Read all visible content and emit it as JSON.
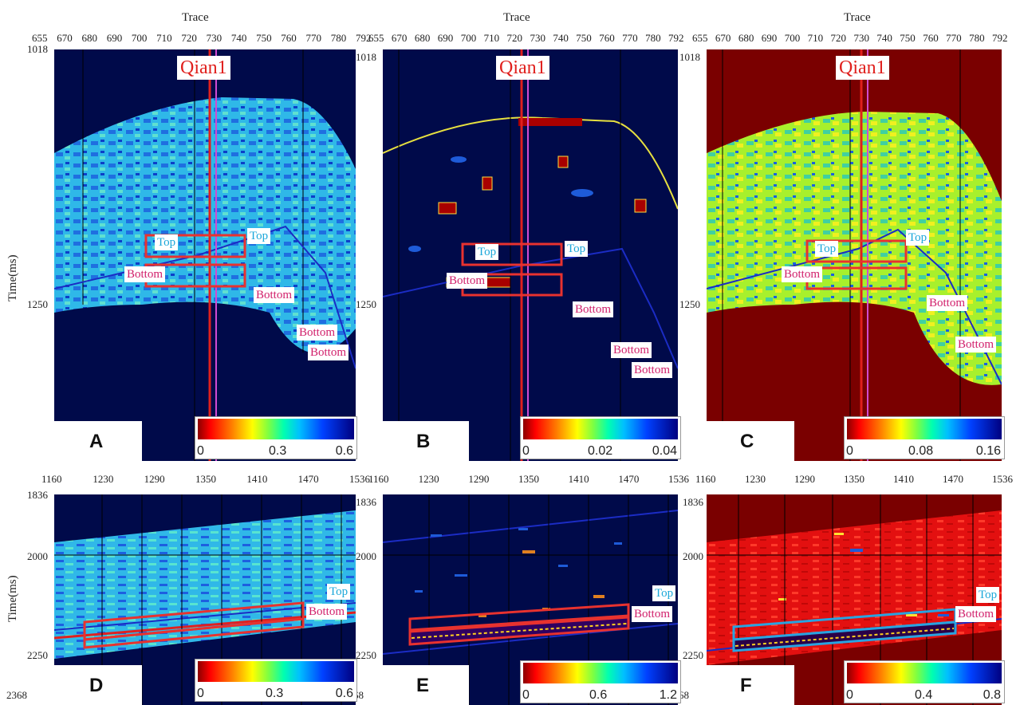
{
  "top_axis_title": "Trace",
  "y_axis_title": "Time(ms)",
  "top_ticks": [
    "655",
    "670",
    "680",
    "690",
    "700",
    "710",
    "720",
    "730",
    "740",
    "750",
    "760",
    "770",
    "780",
    "792"
  ],
  "top_ticks_c": [
    "655",
    "670",
    "680",
    "690",
    "700",
    "710",
    "720",
    "730",
    "740",
    "750",
    "760",
    "770",
    "780",
    "792"
  ],
  "top_y_ticks": {
    "t1": "1018",
    "t2": "1250"
  },
  "bottom_ticks": [
    "1160",
    "1230",
    "1290",
    "1350",
    "1410",
    "1470",
    "1536"
  ],
  "bottom_y_ticks": {
    "t1": "1836",
    "t2": "2000",
    "t3": "2250",
    "t4": "2368"
  },
  "well_name": "Qian1",
  "tag_top": "Top",
  "tag_bottom": "Bottom",
  "panels": {
    "A": {
      "letter": "A",
      "cb": [
        "0",
        "0.3",
        "0.6"
      ]
    },
    "B": {
      "letter": "B",
      "cb": [
        "0",
        "0.02",
        "0.04"
      ]
    },
    "C": {
      "letter": "C",
      "cb": [
        "0",
        "0.08",
        "0.16"
      ]
    },
    "D": {
      "letter": "D",
      "cb": [
        "0",
        "0.3",
        "0.6"
      ]
    },
    "E": {
      "letter": "E",
      "cb": [
        "0",
        "0.6",
        "1.2"
      ]
    },
    "F": {
      "letter": "F",
      "cb": [
        "0",
        "0.4",
        "0.8"
      ]
    }
  },
  "colors": {
    "navy": "#000a4a",
    "darkred": "#7a0000",
    "box_red": "#e8322f",
    "box_blue": "#29a3e0"
  }
}
